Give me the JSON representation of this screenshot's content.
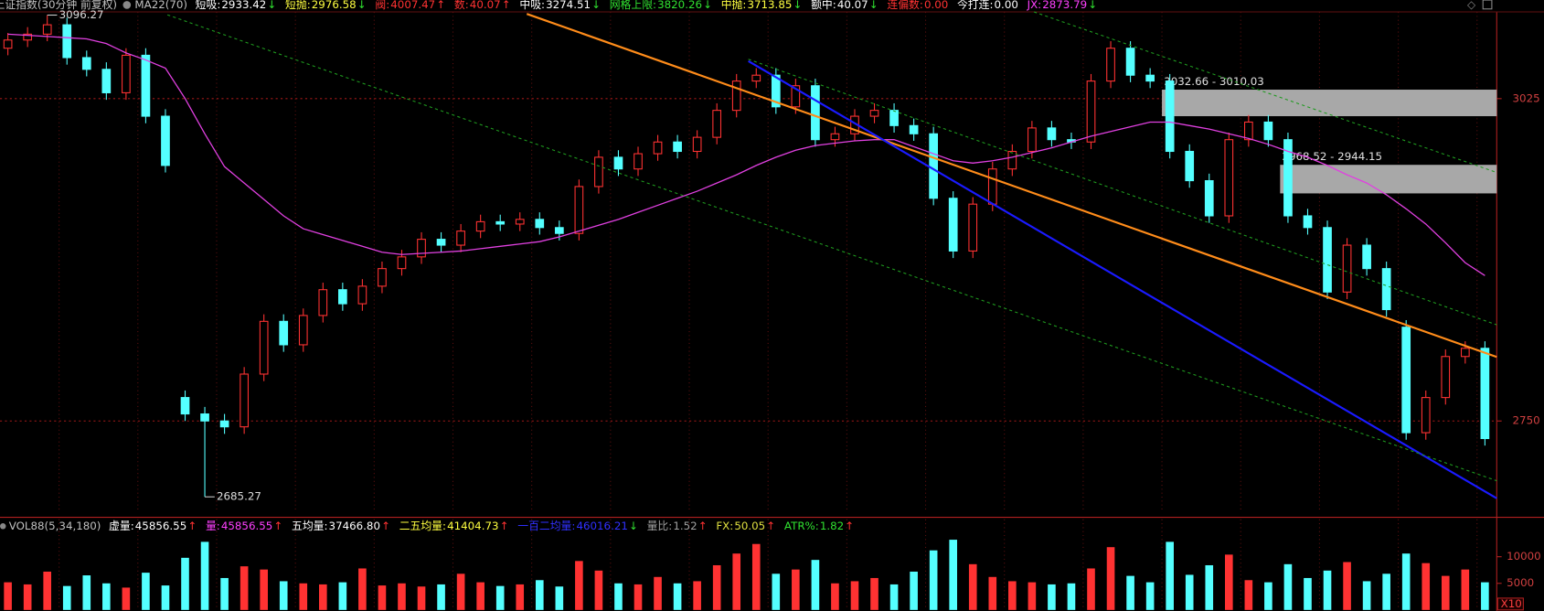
{
  "chart_data": {
    "type": "candlestick",
    "title": "上证指数(30分钟 前复权)",
    "ma_name": "MA22(70)",
    "indicators": [
      {
        "label": "短吸:",
        "value": "2933.42",
        "arrow": "↓",
        "color": "#ffffff"
      },
      {
        "label": "短抛:",
        "value": "2976.58",
        "arrow": "↓",
        "color": "#ffff40"
      },
      {
        "label": "阀:",
        "value": "4007.47",
        "arrow": "↑",
        "color": "#ff3232"
      },
      {
        "label": "数:",
        "value": "40.07",
        "arrow": "↑",
        "color": "#ff3232"
      },
      {
        "label": "中吸:",
        "value": "3274.51",
        "arrow": "↓",
        "color": "#ffffff"
      },
      {
        "label": "网格上限:",
        "value": "3820.26",
        "arrow": "↓",
        "color": "#30e030"
      },
      {
        "label": "中抛:",
        "value": "3713.85",
        "arrow": "↓",
        "color": "#ffff40"
      },
      {
        "label": "额中:",
        "value": "40.07",
        "arrow": "↓",
        "color": "#ffffff"
      },
      {
        "label": "连偏数:",
        "value": "0.00",
        "color": "#ff3232"
      },
      {
        "label": "今打连:",
        "value": "0.00",
        "color": "#ffffff"
      },
      {
        "label": "JX:",
        "value": "2873.79",
        "arrow": "↓",
        "color": "#ff40ff"
      }
    ],
    "open": [
      3068,
      3075,
      3080,
      3088,
      3060,
      3050,
      3030,
      3062,
      3010,
      2770,
      2756,
      2750,
      2745,
      2790,
      2835,
      2815,
      2840,
      2862,
      2850,
      2865,
      2880,
      2890,
      2905,
      2900,
      2912,
      2920,
      2918,
      2922,
      2915,
      2910,
      2950,
      2975,
      2965,
      2978,
      2988,
      2980,
      2992,
      3015,
      3040,
      3045,
      3018,
      3036,
      2990,
      2995,
      3010,
      3015,
      3002,
      2995,
      2940,
      2895,
      2935,
      2965,
      2980,
      3000,
      2990,
      2988,
      3040,
      3068,
      3045,
      3040,
      2980,
      2955,
      2925,
      2990,
      3005,
      2990,
      2925,
      2915,
      2860,
      2900,
      2880,
      2830,
      2740,
      2770,
      2805,
      2812
    ],
    "high": [
      3081,
      3086,
      3096.27,
      3094,
      3066,
      3056,
      3068,
      3068,
      3016,
      2776,
      2762,
      2756,
      2796,
      2841,
      2841,
      2846,
      2868,
      2868,
      2871,
      2886,
      2896,
      2911,
      2911,
      2918,
      2926,
      2926,
      2928,
      2928,
      2921,
      2956,
      2981,
      2981,
      2984,
      2994,
      2994,
      2998,
      3021,
      3046,
      3051,
      3051,
      3042,
      3042,
      3001,
      3016,
      3021,
      3021,
      3008,
      3001,
      2946,
      2941,
      2971,
      2986,
      3006,
      3006,
      2996,
      3046,
      3074,
      3074,
      3051,
      3046,
      2986,
      2961,
      2996,
      3011,
      3011,
      2996,
      2931,
      2921,
      2906,
      2906,
      2886,
      2836,
      2776,
      2811,
      2818,
      2818
    ],
    "low": [
      3062,
      3069,
      3074,
      3054,
      3044,
      3024,
      3024,
      3004,
      2962,
      2750,
      2685.27,
      2739,
      2739,
      2784,
      2809,
      2809,
      2834,
      2844,
      2844,
      2859,
      2874,
      2884,
      2894,
      2894,
      2906,
      2912,
      2912,
      2909,
      2904,
      2904,
      2944,
      2959,
      2959,
      2972,
      2974,
      2974,
      2986,
      3009,
      3034,
      3012,
      3012,
      2984,
      2984,
      2989,
      3004,
      2996,
      2989,
      2934,
      2889,
      2889,
      2929,
      2959,
      2974,
      2984,
      2982,
      2982,
      3034,
      3039,
      3034,
      2974,
      2949,
      2919,
      2919,
      2984,
      2984,
      2919,
      2909,
      2854,
      2854,
      2874,
      2839,
      2734,
      2734,
      2764,
      2799,
      2729
    ],
    "close": [
      3075,
      3080,
      3088,
      3060,
      3050,
      3030,
      3062,
      3010,
      2968,
      2756,
      2750,
      2745,
      2790,
      2835,
      2815,
      2840,
      2862,
      2850,
      2865,
      2880,
      2890,
      2905,
      2900,
      2912,
      2920,
      2918,
      2922,
      2915,
      2910,
      2950,
      2975,
      2965,
      2978,
      2988,
      2980,
      2992,
      3015,
      3040,
      3045,
      3018,
      3036,
      2990,
      2995,
      3010,
      3015,
      3002,
      2995,
      2940,
      2895,
      2935,
      2965,
      2980,
      3000,
      2990,
      2988,
      3040,
      3068,
      3045,
      3040,
      2980,
      2955,
      2925,
      2990,
      3005,
      2990,
      2925,
      2915,
      2860,
      2900,
      2880,
      2845,
      2740,
      2770,
      2805,
      2812,
      2735
    ],
    "ma": {
      "color": "#e040e0",
      "values": [
        3080,
        3079,
        3078,
        3077,
        3076,
        3072,
        3064,
        3058,
        3051,
        3025,
        2995,
        2967,
        2953,
        2939,
        2925,
        2914,
        2909,
        2904,
        2899,
        2894,
        2892,
        2893,
        2894,
        2895,
        2897,
        2899,
        2901,
        2903,
        2907,
        2912,
        2917,
        2922,
        2928,
        2934,
        2940,
        2946,
        2953,
        2960,
        2968,
        2975,
        2981,
        2985,
        2987,
        2989,
        2990,
        2990,
        2984,
        2978,
        2972,
        2970,
        2972,
        2975,
        2979,
        2983,
        2988,
        2993,
        2997,
        3001,
        3005,
        3005,
        3002,
        2999,
        2995,
        2991,
        2986,
        2980,
        2975,
        2968,
        2960,
        2953,
        2943,
        2931,
        2918,
        2902,
        2885,
        2874
      ]
    },
    "up_color": "#ff3232",
    "down_color": "#54ffff",
    "ylim": [
      2672,
      3099
    ],
    "yticks": [
      3025,
      2750
    ],
    "grid": true,
    "max_label": 3096.27,
    "min_label": 2685.27,
    "zones": [
      {
        "from_bar": 59,
        "top": 3032.66,
        "bottom": 3010.03,
        "label": "3032.66 - 3010.03"
      },
      {
        "from_bar": 65,
        "top": 2968.52,
        "bottom": 2944.15,
        "label": "2968.52 - 2944.15"
      }
    ],
    "lines": [
      {
        "color": "#ff8c1a",
        "dashed": false,
        "from": [
          26.35,
          3097.3
        ],
        "to": [
          75.6,
          2804.6
        ]
      },
      {
        "color": "#1a1aff",
        "dashed": false,
        "from": [
          37.6,
          3057
        ],
        "to": [
          75.6,
          2684
        ]
      },
      {
        "color": "#1f9a1f",
        "dashed": true,
        "from": [
          52.1,
          3099
        ],
        "to": [
          75.6,
          2962
        ]
      },
      {
        "color": "#1f9a1f",
        "dashed": true,
        "from": [
          37.6,
          3058.6
        ],
        "to": [
          75.6,
          2832
        ]
      },
      {
        "color": "#1f9a1f",
        "dashed": true,
        "from": [
          8.1,
          3096.5
        ],
        "to": [
          75.6,
          2699
        ]
      }
    ],
    "volume": {
      "title": "VOL88(5,34,180)",
      "indicators": [
        {
          "label": "虚量:",
          "value": "45856.55",
          "arrow": "↑",
          "color": "#ffffff"
        },
        {
          "label": "量:",
          "value": "45856.55",
          "arrow": "↑",
          "color": "#ff40ff"
        },
        {
          "label": "五均量:",
          "value": "37466.80",
          "arrow": "↑",
          "color": "#ffffff"
        },
        {
          "label": "二五均量:",
          "value": "41404.73",
          "arrow": "↑",
          "color": "#ffff40"
        },
        {
          "label": "一百二均量:",
          "value": "46016.21",
          "arrow": "↓",
          "color": "#3030ff"
        },
        {
          "label": "量比:",
          "value": "1.52",
          "arrow": "↑",
          "color": "#a0a0a0"
        },
        {
          "label": "FX:",
          "value": "50.05",
          "arrow": "↑",
          "color": "#e0e040"
        },
        {
          "label": "ATR%:",
          "value": "1.82",
          "arrow": "↑",
          "color": "#30e030"
        }
      ],
      "values": [
        5200,
        4800,
        7200,
        4500,
        6500,
        5000,
        4200,
        7000,
        4600,
        9800,
        12800,
        6000,
        8200,
        7600,
        5400,
        5000,
        4800,
        5200,
        7800,
        4600,
        5000,
        4400,
        4800,
        6800,
        5200,
        4500,
        4800,
        5600,
        4400,
        9200,
        7400,
        5000,
        4800,
        6200,
        5000,
        5400,
        8400,
        10600,
        12400,
        6800,
        7600,
        9400,
        5000,
        5400,
        6000,
        4800,
        7200,
        11200,
        13200,
        8600,
        6200,
        5400,
        5200,
        4800,
        5000,
        7800,
        11800,
        6400,
        5200,
        12800,
        6600,
        8400,
        10400,
        5600,
        5200,
        8600,
        6000,
        7400,
        9000,
        5400,
        6800,
        10600,
        8800,
        6400,
        7600,
        5200
      ],
      "ylim": [
        0,
        14630
      ],
      "yticks": [
        5000,
        10000
      ],
      "unit": "X10"
    }
  }
}
